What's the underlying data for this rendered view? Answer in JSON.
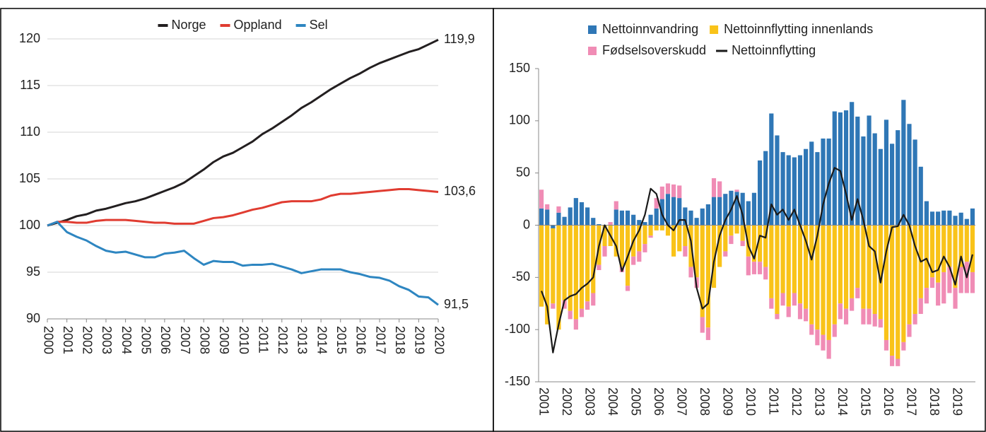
{
  "chart_data": [
    {
      "type": "line",
      "legend": "top",
      "x": [
        2000,
        2000.5,
        2001,
        2001.5,
        2002,
        2002.5,
        2003,
        2003.5,
        2004,
        2004.5,
        2005,
        2005.5,
        2006,
        2006.5,
        2007,
        2007.5,
        2008,
        2008.5,
        2009,
        2009.5,
        2010,
        2010.5,
        2011,
        2011.5,
        2012,
        2012.5,
        2013,
        2013.5,
        2014,
        2014.5,
        2015,
        2015.5,
        2016,
        2016.5,
        2017,
        2017.5,
        2018,
        2018.5,
        2019,
        2019.5,
        2020
      ],
      "xlim": [
        2000,
        2020
      ],
      "xticks": [
        2000,
        2001,
        2002,
        2003,
        2004,
        2005,
        2006,
        2007,
        2008,
        2009,
        2010,
        2011,
        2012,
        2013,
        2014,
        2015,
        2016,
        2017,
        2018,
        2019,
        2020
      ],
      "ylim": [
        90,
        120
      ],
      "yticks": [
        90,
        95,
        100,
        105,
        110,
        115,
        120
      ],
      "grid": true,
      "series": [
        {
          "name": "Norge",
          "color": "#231f20",
          "end_label": "119,9",
          "values": [
            100,
            100.3,
            100.6,
            101.0,
            101.2,
            101.6,
            101.8,
            102.1,
            102.4,
            102.6,
            102.9,
            103.3,
            103.7,
            104.1,
            104.6,
            105.3,
            106.0,
            106.8,
            107.4,
            107.8,
            108.4,
            109.0,
            109.8,
            110.4,
            111.1,
            111.8,
            112.6,
            113.2,
            113.9,
            114.6,
            115.2,
            115.8,
            116.3,
            116.9,
            117.4,
            117.8,
            118.2,
            118.6,
            118.9,
            119.4,
            119.9
          ]
        },
        {
          "name": "Oppland",
          "color": "#e03c31",
          "end_label": "103,6",
          "values": [
            100,
            100.4,
            100.4,
            100.3,
            100.3,
            100.5,
            100.6,
            100.6,
            100.6,
            100.5,
            100.4,
            100.3,
            100.3,
            100.2,
            100.2,
            100.2,
            100.5,
            100.8,
            100.9,
            101.1,
            101.4,
            101.7,
            101.9,
            102.2,
            102.5,
            102.6,
            102.6,
            102.6,
            102.8,
            103.2,
            103.4,
            103.4,
            103.5,
            103.6,
            103.7,
            103.8,
            103.9,
            103.9,
            103.8,
            103.7,
            103.6
          ]
        },
        {
          "name": "Sel",
          "color": "#2e86c1",
          "end_label": "91,5",
          "values": [
            100,
            100.4,
            99.3,
            98.8,
            98.4,
            97.8,
            97.3,
            97.1,
            97.2,
            96.9,
            96.6,
            96.6,
            97.0,
            97.1,
            97.3,
            96.5,
            95.8,
            96.2,
            96.1,
            96.1,
            95.7,
            95.8,
            95.8,
            95.9,
            95.6,
            95.3,
            94.9,
            95.1,
            95.3,
            95.3,
            95.3,
            95.0,
            94.8,
            94.5,
            94.4,
            94.1,
            93.5,
            93.1,
            92.4,
            92.3,
            91.5
          ]
        }
      ]
    },
    {
      "type": "bar",
      "stacked": true,
      "legend": "top",
      "categories": [
        "2001",
        null,
        null,
        null,
        "2002",
        null,
        null,
        null,
        "2003",
        null,
        null,
        null,
        "2004",
        null,
        null,
        null,
        "2005",
        null,
        null,
        null,
        "2006",
        null,
        null,
        null,
        "2007",
        null,
        null,
        null,
        "2008",
        null,
        null,
        null,
        "2009",
        null,
        null,
        null,
        "2010",
        null,
        null,
        null,
        "2011",
        null,
        null,
        null,
        "2012",
        null,
        null,
        null,
        "2013",
        null,
        null,
        null,
        "2014",
        null,
        null,
        null,
        "2015",
        null,
        null,
        null,
        "2016",
        null,
        null,
        null,
        "2017",
        null,
        null,
        null,
        "2018",
        null,
        null,
        null,
        "2019",
        null,
        null,
        null
      ],
      "ylim": [
        -150,
        150
      ],
      "yticks": [
        -150,
        -100,
        -50,
        0,
        50,
        100,
        150
      ],
      "grid": false,
      "series": [
        {
          "name": "Nettoinnvandring",
          "color": "#2f77b6",
          "values": [
            16,
            15,
            -3,
            12,
            8,
            17,
            26,
            22,
            17,
            7,
            1,
            0,
            0,
            15,
            14,
            14,
            10,
            5,
            3,
            10,
            16,
            25,
            30,
            27,
            26,
            17,
            14,
            7,
            16,
            20,
            27,
            27,
            30,
            33,
            32,
            31,
            23,
            31,
            62,
            71,
            107,
            86,
            70,
            67,
            65,
            67,
            73,
            80,
            70,
            83,
            83,
            109,
            108,
            110,
            118,
            104,
            85,
            105,
            88,
            73,
            101,
            78,
            91,
            120,
            97,
            82,
            56,
            23,
            13,
            13,
            14,
            14,
            9,
            12,
            6,
            16
          ]
        },
        {
          "name": "Nettoinnflytting innenlands",
          "color": "#f9c319",
          "values": [
            -78,
            -95,
            -72,
            -100,
            -72,
            -82,
            -90,
            -80,
            -73,
            -65,
            -38,
            -20,
            -20,
            -30,
            -40,
            -58,
            -30,
            -25,
            -18,
            -10,
            -5,
            -5,
            -10,
            -30,
            -25,
            -20,
            -40,
            -50,
            -88,
            -98,
            -60,
            -40,
            -25,
            -10,
            -8,
            -15,
            -30,
            -35,
            -35,
            -40,
            -70,
            -85,
            -65,
            -78,
            -65,
            -75,
            -80,
            -95,
            -100,
            -105,
            -110,
            -95,
            -75,
            -80,
            -70,
            -60,
            -80,
            -80,
            -85,
            -90,
            -110,
            -125,
            -128,
            -112,
            -95,
            -85,
            -70,
            -60,
            -50,
            -55,
            -45,
            -40,
            -60,
            -40,
            -35,
            -45
          ]
        },
        {
          "name": "Fødselsoverskudd",
          "color": "#f08cb5",
          "values": [
            18,
            5,
            -5,
            6,
            -8,
            -8,
            -10,
            -8,
            -8,
            -12,
            -5,
            -10,
            3,
            8,
            -5,
            -5,
            -8,
            -10,
            -8,
            -2,
            10,
            12,
            10,
            12,
            12,
            -10,
            -10,
            -10,
            -15,
            -12,
            18,
            15,
            -5,
            -8,
            2,
            -5,
            -18,
            -12,
            -12,
            -12,
            -10,
            -5,
            -12,
            -10,
            -12,
            -15,
            -12,
            -10,
            -15,
            -15,
            -18,
            -12,
            -15,
            -15,
            -12,
            -10,
            -15,
            -15,
            -12,
            -8,
            -10,
            -10,
            -7,
            -8,
            -12,
            -10,
            -15,
            -15,
            -10,
            -22,
            -30,
            -25,
            -20,
            -25,
            -30,
            -20
          ]
        },
        {
          "name": "Nettoinnflytting",
          "color": "#1a1a1a",
          "type": "line",
          "values": [
            -63,
            -78,
            -122,
            -95,
            -72,
            -68,
            -66,
            -60,
            -56,
            -50,
            -20,
            0,
            -10,
            -20,
            -44,
            -30,
            -15,
            -5,
            10,
            35,
            30,
            10,
            0,
            -5,
            5,
            5,
            -15,
            -60,
            -80,
            -75,
            -35,
            -10,
            5,
            15,
            28,
            10,
            -20,
            -32,
            -10,
            -12,
            20,
            10,
            15,
            5,
            15,
            0,
            -15,
            -33,
            -10,
            20,
            40,
            55,
            52,
            30,
            5,
            25,
            5,
            -20,
            -25,
            -55,
            -25,
            -2,
            -1,
            10,
            0,
            -20,
            -35,
            -32,
            -45,
            -43,
            -30,
            -40,
            -57,
            -30,
            -50,
            -28
          ]
        }
      ]
    }
  ]
}
